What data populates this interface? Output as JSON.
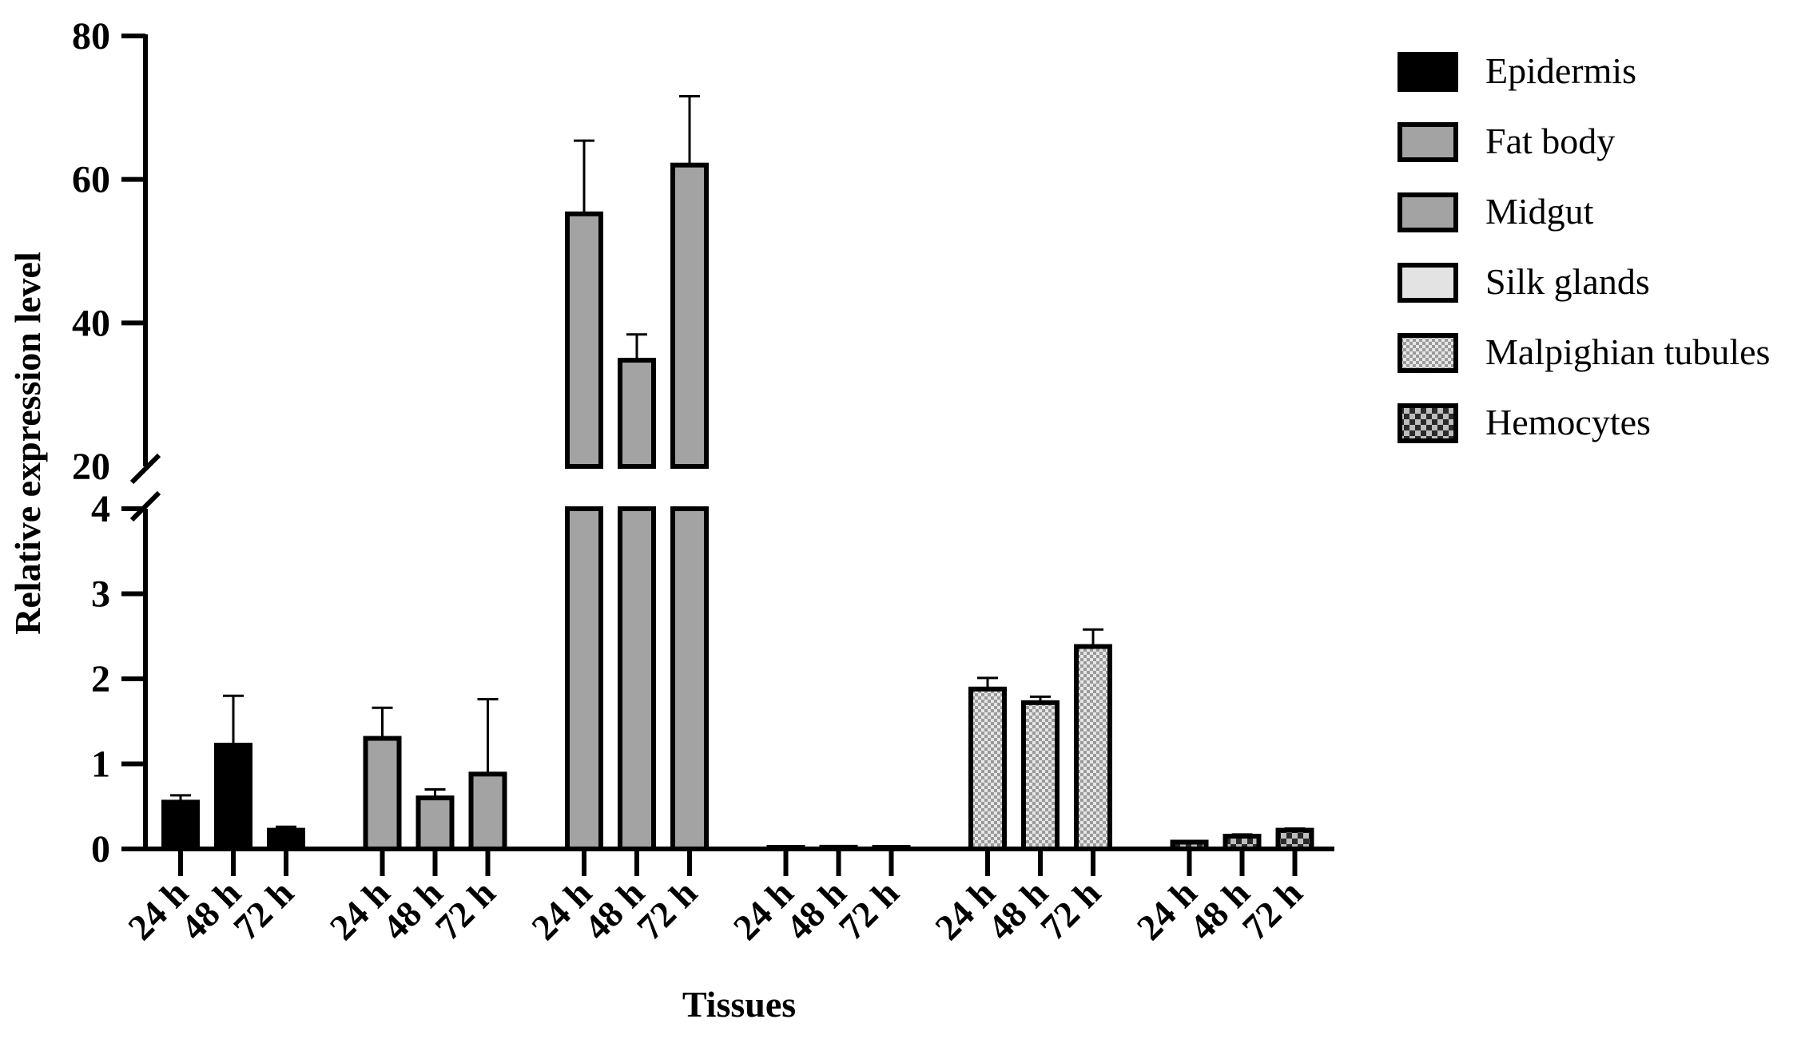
{
  "chart_data": {
    "type": "bar",
    "xlabel": "Tissues",
    "ylabel": "Relative expression level",
    "y_axis": {
      "broken": true,
      "lower_segment": {
        "range": [
          0,
          4
        ],
        "ticks": [
          "0",
          "1",
          "2",
          "3",
          "4"
        ]
      },
      "upper_segment": {
        "range": [
          20,
          80
        ],
        "ticks": [
          "20",
          "40",
          "60",
          "80"
        ]
      }
    },
    "time_labels": [
      "24 h",
      "48 h",
      "72 h"
    ],
    "series": [
      {
        "name": "Epidermis",
        "fill": "#000000",
        "pattern": "solid",
        "values": [
          0.55,
          1.22,
          0.22
        ],
        "errors": [
          0.08,
          0.58,
          0.04
        ]
      },
      {
        "name": "Fat body",
        "fill": "#a3a3a3",
        "pattern": "solid",
        "values": [
          1.3,
          0.6,
          0.88
        ],
        "errors": [
          0.36,
          0.1,
          0.88
        ]
      },
      {
        "name": "Midgut",
        "fill": "#a3a3a3",
        "pattern": "solid",
        "values": [
          55.2,
          34.8,
          62.0
        ],
        "errors": [
          10.2,
          3.6,
          9.6
        ]
      },
      {
        "name": "Silk glands",
        "fill": "#e3e3e3",
        "pattern": "solid",
        "values": [
          0.01,
          0.02,
          0.01
        ],
        "errors": [
          0.0,
          0.0,
          0.0
        ]
      },
      {
        "name": "Malpighian tubules",
        "fill": "#d9d9d9",
        "pattern": "dots",
        "values": [
          1.88,
          1.72,
          2.38
        ],
        "errors": [
          0.13,
          0.07,
          0.2
        ]
      },
      {
        "name": "Hemocytes",
        "fill": "#444444",
        "pattern": "checker",
        "values": [
          0.08,
          0.15,
          0.22
        ],
        "errors": [
          0.01,
          0.02,
          0.02
        ]
      }
    ],
    "legend_position": "top-right",
    "grid": false
  }
}
